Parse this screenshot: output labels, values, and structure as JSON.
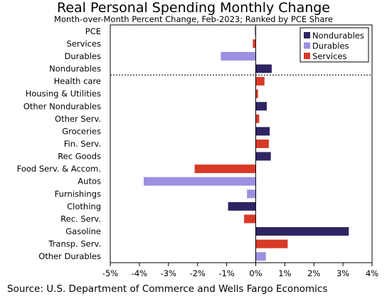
{
  "header": {
    "title": "Real Personal Spending Monthly Change",
    "subtitle": "Month-over-Month Percent Change, Feb-2023; Ranked by PCE Share"
  },
  "footer": {
    "source": "Source: U.S. Department of Commerce and Wells Fargo Economics"
  },
  "colors": {
    "Nondurables": "#2e2462",
    "Durables": "#9d8fe0",
    "Services": "#d73a27",
    "PCE": "#b3b3b3"
  },
  "chart_data": {
    "type": "bar",
    "orientation": "horizontal",
    "title": "Real Personal Spending Monthly Change",
    "subtitle": "Month-over-Month Percent Change, Feb-2023; Ranked by PCE Share",
    "xlim": [
      -5,
      4
    ],
    "xticks": [
      "-5%",
      "-4%",
      "-3%",
      "-2%",
      "-1%",
      "0%",
      "1%",
      "2%",
      "3%",
      "4%"
    ],
    "legend_position": "top-right",
    "legend": [
      "Nondurables",
      "Durables",
      "Services"
    ],
    "categories": [
      "PCE",
      "Services",
      "Durables",
      "Nondurables",
      "Health care",
      "Housing & Utilities",
      "Other Nondurables",
      "Other Serv.",
      "Groceries",
      "Fin. Serv.",
      "Rec Goods",
      "Food Serv. & Accom.",
      "Autos",
      "Furnishings",
      "Clothing",
      "Rec. Serv.",
      "Gasoline",
      "Transp. Serv.",
      "Other Durables"
    ],
    "values": [
      -0.05,
      -0.1,
      -1.2,
      0.55,
      0.3,
      0.08,
      0.38,
      0.12,
      0.48,
      0.45,
      0.52,
      -2.1,
      -3.85,
      -0.3,
      -0.95,
      -0.4,
      3.2,
      1.1,
      0.35
    ],
    "groups": [
      "PCE",
      "Services",
      "Durables",
      "Nondurables",
      "Services",
      "Services",
      "Nondurables",
      "Services",
      "Nondurables",
      "Services",
      "Nondurables",
      "Services",
      "Durables",
      "Durables",
      "Nondurables",
      "Services",
      "Nondurables",
      "Services",
      "Durables"
    ],
    "divider_after_index": 3
  }
}
